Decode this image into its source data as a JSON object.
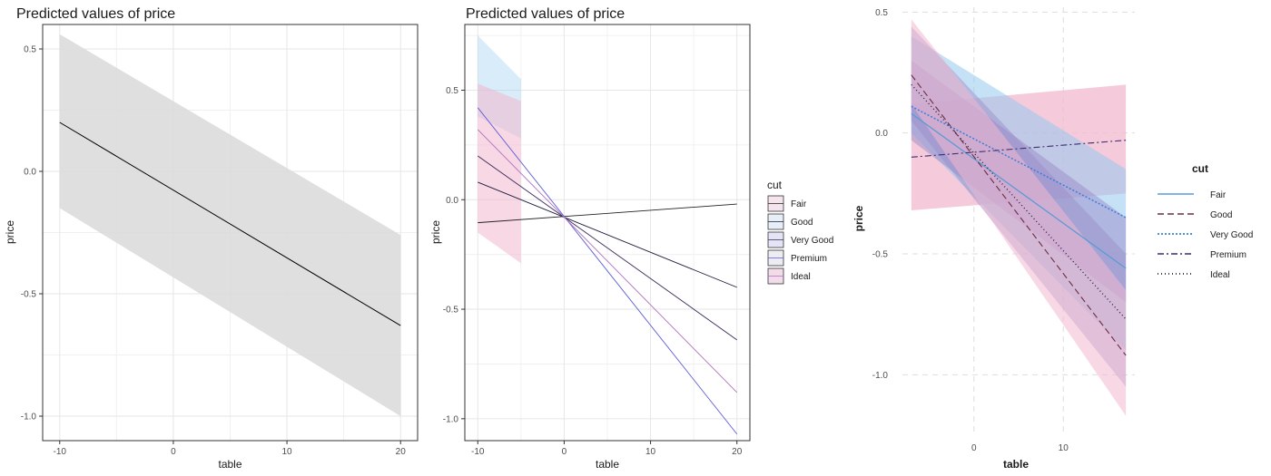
{
  "colors": {
    "panel_border": "#333333",
    "grid_minor": "#f0f0f0",
    "grid_major": "#e6e6e6",
    "dashed_grid": "#dddddd",
    "ribbon_gray": "#d9d9d9",
    "line_black": "#000000",
    "fair": "#5b9bd5",
    "good": "#6b2d3f",
    "very_good": "#3b7dd8",
    "premium": "#3b2f6e",
    "ideal": "#2a2040",
    "ribbon_pink": "#f2b8cf",
    "ribbon_blue": "#93c8ee",
    "ribbon_purple": "#9a8cc8"
  },
  "chart_data": [
    {
      "type": "line",
      "title": "Predicted values of price",
      "xlabel": "table",
      "ylabel": "price",
      "xlim": [
        -11.5,
        21.5
      ],
      "ylim": [
        -1.1,
        0.6
      ],
      "x_ticks": [
        "-10",
        "0",
        "10",
        "20"
      ],
      "y_ticks": [
        "0.5",
        "0.0",
        "-0.5",
        "-1.0"
      ],
      "grid": true,
      "series": [
        {
          "x": [
            -10,
            20
          ],
          "y": [
            0.2,
            -0.63
          ],
          "lower": [
            -0.15,
            -1.0
          ],
          "upper": [
            0.56,
            -0.26
          ]
        }
      ]
    },
    {
      "type": "line",
      "title": "Predicted values of price",
      "xlabel": "table",
      "ylabel": "price",
      "xlim": [
        -11.5,
        21.5
      ],
      "ylim": [
        -1.1,
        0.8
      ],
      "x_ticks": [
        "-10",
        "0",
        "10",
        "20"
      ],
      "y_ticks": [
        "0.5",
        "0.0",
        "-0.5",
        "-1.0"
      ],
      "grid": true,
      "legend_title": "cut",
      "legend_position": "right",
      "legend": [
        "Fair",
        "Good",
        "Very Good",
        "Premium",
        "Ideal"
      ],
      "series": [
        {
          "name": "Fair",
          "x": [
            -10,
            20
          ],
          "y": [
            -0.105,
            -0.02
          ]
        },
        {
          "name": "Good",
          "x": [
            -10,
            20
          ],
          "y": [
            0.08,
            -0.4
          ]
        },
        {
          "name": "Very Good",
          "x": [
            -10,
            20
          ],
          "y": [
            0.2,
            -0.64
          ]
        },
        {
          "name": "Premium",
          "x": [
            -10,
            20
          ],
          "y": [
            0.42,
            -1.07
          ]
        },
        {
          "name": "Ideal",
          "x": [
            -10,
            20
          ],
          "y": [
            0.32,
            -0.88
          ]
        }
      ],
      "ribbons": [
        {
          "x": [
            -10,
            -5
          ],
          "lower": [
            0.38,
            0.28
          ],
          "upper": [
            0.75,
            0.55
          ]
        },
        {
          "x": [
            -10,
            -5
          ],
          "lower": [
            -0.15,
            -0.29
          ],
          "upper": [
            0.53,
            0.45
          ]
        }
      ]
    },
    {
      "type": "line",
      "title": "",
      "xlabel": "table",
      "ylabel": "price",
      "xlim": [
        -8,
        18
      ],
      "ylim": [
        -1.25,
        0.52
      ],
      "x_ticks": [
        "0",
        "10"
      ],
      "y_ticks": [
        "0.5",
        "0.0",
        "-0.5",
        "-1.0"
      ],
      "grid": true,
      "legend_title": "cut",
      "legend_position": "right",
      "legend": [
        "Fair",
        "Good",
        "Very Good",
        "Premium",
        "Ideal"
      ],
      "series": [
        {
          "name": "Fair",
          "x": [
            -7,
            17
          ],
          "y": [
            0.08,
            -0.56
          ]
        },
        {
          "name": "Good",
          "x": [
            -7,
            17
          ],
          "y": [
            0.24,
            -0.92
          ]
        },
        {
          "name": "Very Good",
          "x": [
            -7,
            17
          ],
          "y": [
            0.11,
            -0.35
          ]
        },
        {
          "name": "Premium",
          "x": [
            -7,
            17
          ],
          "y": [
            -0.1,
            -0.03
          ]
        },
        {
          "name": "Ideal",
          "x": [
            -7,
            17
          ],
          "y": [
            0.2,
            -0.77
          ]
        }
      ],
      "ribbons": [
        {
          "x": [
            -7,
            17
          ],
          "lower": [
            -0.32,
            -0.25
          ],
          "upper": [
            0.12,
            0.2
          ]
        },
        {
          "x": [
            -7,
            17
          ],
          "lower": [
            0.0,
            -0.9
          ],
          "upper": [
            0.4,
            -0.15
          ]
        },
        {
          "x": [
            -7,
            17
          ],
          "lower": [
            -0.03,
            -0.7
          ],
          "upper": [
            0.3,
            -0.35
          ]
        },
        {
          "x": [
            -7,
            17
          ],
          "lower": [
            0.05,
            -1.05
          ],
          "upper": [
            0.44,
            -0.5
          ]
        },
        {
          "x": [
            -7,
            17
          ],
          "lower": [
            0.12,
            -1.17
          ],
          "upper": [
            0.47,
            -0.65
          ]
        }
      ]
    }
  ]
}
